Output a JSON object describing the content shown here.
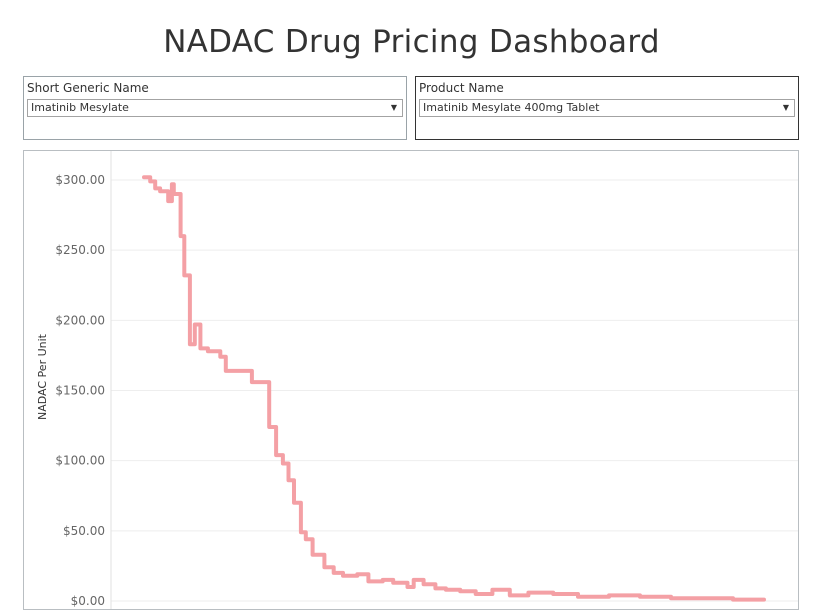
{
  "title": "NADAC Drug Pricing Dashboard",
  "filters": {
    "generic": {
      "label": "Short Generic Name",
      "value": "Imatinib Mesylate"
    },
    "product": {
      "label": "Product Name",
      "value": "Imatinib Mesylate 400mg Tablet"
    }
  },
  "colors": {
    "line": "#f4a0a5",
    "grid": "#eeeeee",
    "text": "#333333",
    "tick": "#666666"
  },
  "chart_data": {
    "type": "line",
    "interpolation": "step",
    "title": "",
    "xlabel": "",
    "ylabel": "NADAC Per Unit",
    "ylim": [
      0,
      300
    ],
    "y_ticks": [
      0,
      50,
      100,
      150,
      200,
      250,
      300
    ],
    "y_tick_labels": [
      "$0.00",
      "$50.00",
      "$100.00",
      "$150.00",
      "$200.00",
      "$250.00",
      "$300.00"
    ],
    "x_range": [
      0,
      100
    ],
    "series": [
      {
        "name": "Imatinib Mesylate 400mg Tablet",
        "x": [
          0,
          1,
          1.8,
          2.6,
          3.9,
          4.5,
          4.8,
          5.9,
          6.5,
          7.4,
          8.2,
          9.1,
          10.3,
          12.3,
          13.2,
          17.4,
          20.2,
          21.3,
          22.4,
          23.3,
          24.2,
          25.3,
          26.1,
          27.2,
          29.1,
          30.6,
          32.1,
          34.4,
          36.2,
          38.5,
          40.2,
          42.5,
          43.5,
          45.1,
          47,
          48.7,
          51,
          53.5,
          56.2,
          59,
          62,
          66,
          70,
          75,
          80,
          85,
          90,
          95,
          100
        ],
        "y": [
          302,
          299,
          294,
          292,
          285,
          297,
          290,
          260,
          232,
          183,
          197,
          180,
          178,
          174,
          164,
          156,
          124,
          104,
          98,
          86,
          70,
          49,
          44,
          33,
          24,
          20,
          18,
          19,
          14,
          15,
          13,
          10,
          15,
          12,
          9,
          8,
          7,
          5,
          8,
          4,
          6,
          5,
          3,
          4,
          3,
          2,
          2,
          1,
          1
        ]
      }
    ]
  }
}
